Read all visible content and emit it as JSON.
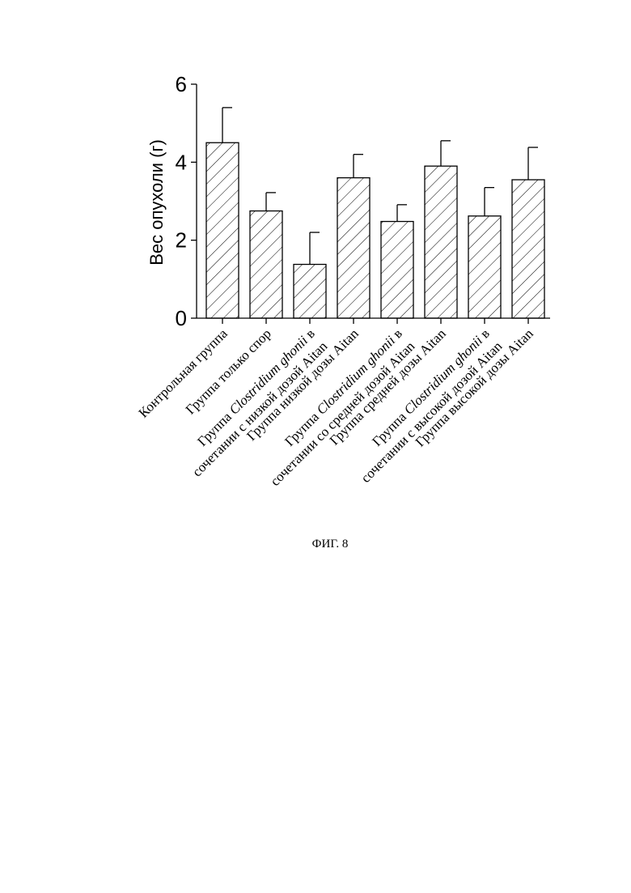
{
  "chart_data": {
    "type": "bar",
    "ylabel": "Вес опухоли (г)",
    "ylim": [
      0,
      6
    ],
    "yticks": [
      0,
      2,
      4,
      6
    ],
    "bar_fill": "diagonal-hatch",
    "categories": [
      {
        "lines": [
          "Контрольная группа"
        ]
      },
      {
        "lines": [
          "Группа только спор"
        ]
      },
      {
        "lines": [
          [
            {
              "t": "Группа "
            },
            {
              "t": "Clostridium ghonii",
              "i": true
            },
            {
              "t": " в"
            }
          ],
          [
            {
              "t": "сочетании с низкой дозой Aitan"
            }
          ]
        ]
      },
      {
        "lines": [
          "Группа низкой дозы Aitan"
        ]
      },
      {
        "lines": [
          [
            {
              "t": "Группа "
            },
            {
              "t": "Clostridium ghonii",
              "i": true
            },
            {
              "t": " в"
            }
          ],
          [
            {
              "t": "сочетании со средней дозой Aitan"
            }
          ]
        ]
      },
      {
        "lines": [
          "Группа средней дозы Aitan"
        ]
      },
      {
        "lines": [
          [
            {
              "t": "Группа "
            },
            {
              "t": "Clostridium ghonii",
              "i": true
            },
            {
              "t": " в"
            }
          ],
          [
            {
              "t": "сочетании с высокой дозой Aitan"
            }
          ]
        ]
      },
      {
        "lines": [
          "Группа высокой дозы Aitan"
        ]
      }
    ],
    "values": [
      4.5,
      2.75,
      1.38,
      3.6,
      2.48,
      3.9,
      2.62,
      3.55
    ],
    "errors": [
      0.9,
      0.47,
      0.82,
      0.6,
      0.43,
      0.65,
      0.73,
      0.83
    ]
  },
  "caption": "ФИГ. 8"
}
